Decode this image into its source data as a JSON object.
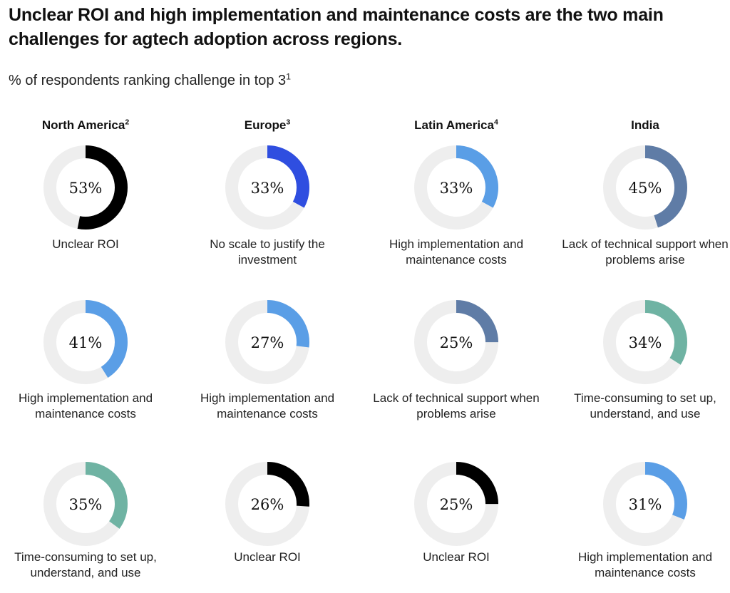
{
  "chart_data": {
    "type": "pie",
    "title": "Unclear ROI and high implementation and maintenance costs are the two main challenges for agtech adoption across regions.",
    "subtitle": "% of respondents ranking challenge in top 3",
    "subtitle_sup": "1",
    "regions": [
      {
        "name": "North America",
        "sup": "2",
        "items": [
          {
            "value": 53,
            "label": "53%",
            "challenge": "Unclear ROI",
            "color": "#000000"
          },
          {
            "value": 41,
            "label": "41%",
            "challenge": "High implementation and maintenance costs",
            "color": "#5a9ee6"
          },
          {
            "value": 35,
            "label": "35%",
            "challenge": "Time-consuming to set up, understand, and use",
            "color": "#6fb3a3"
          }
        ]
      },
      {
        "name": "Europe",
        "sup": "3",
        "items": [
          {
            "value": 33,
            "label": "33%",
            "challenge": "No scale to justify the investment",
            "color": "#2f4ee0"
          },
          {
            "value": 27,
            "label": "27%",
            "challenge": "High implementation and maintenance costs",
            "color": "#5a9ee6"
          },
          {
            "value": 26,
            "label": "26%",
            "challenge": "Unclear ROI",
            "color": "#000000"
          }
        ]
      },
      {
        "name": "Latin America",
        "sup": "4",
        "items": [
          {
            "value": 33,
            "label": "33%",
            "challenge": "High implementation and maintenance costs",
            "color": "#5a9ee6"
          },
          {
            "value": 25,
            "label": "25%",
            "challenge": "Lack of technical support when problems arise",
            "color": "#5f7ca6"
          },
          {
            "value": 25,
            "label": "25%",
            "challenge": "Unclear ROI",
            "color": "#000000"
          }
        ]
      },
      {
        "name": "India",
        "sup": "",
        "items": [
          {
            "value": 45,
            "label": "45%",
            "challenge": "Lack of technical support when problems arise",
            "color": "#5f7ca6"
          },
          {
            "value": 34,
            "label": "34%",
            "challenge": "Time-consuming to set up, understand, and use",
            "color": "#6fb3a3"
          },
          {
            "value": 31,
            "label": "31%",
            "challenge": "High implementation and maintenance costs",
            "color": "#5a9ee6"
          }
        ]
      }
    ],
    "track_color": "#eeeeee",
    "legend": "none"
  }
}
